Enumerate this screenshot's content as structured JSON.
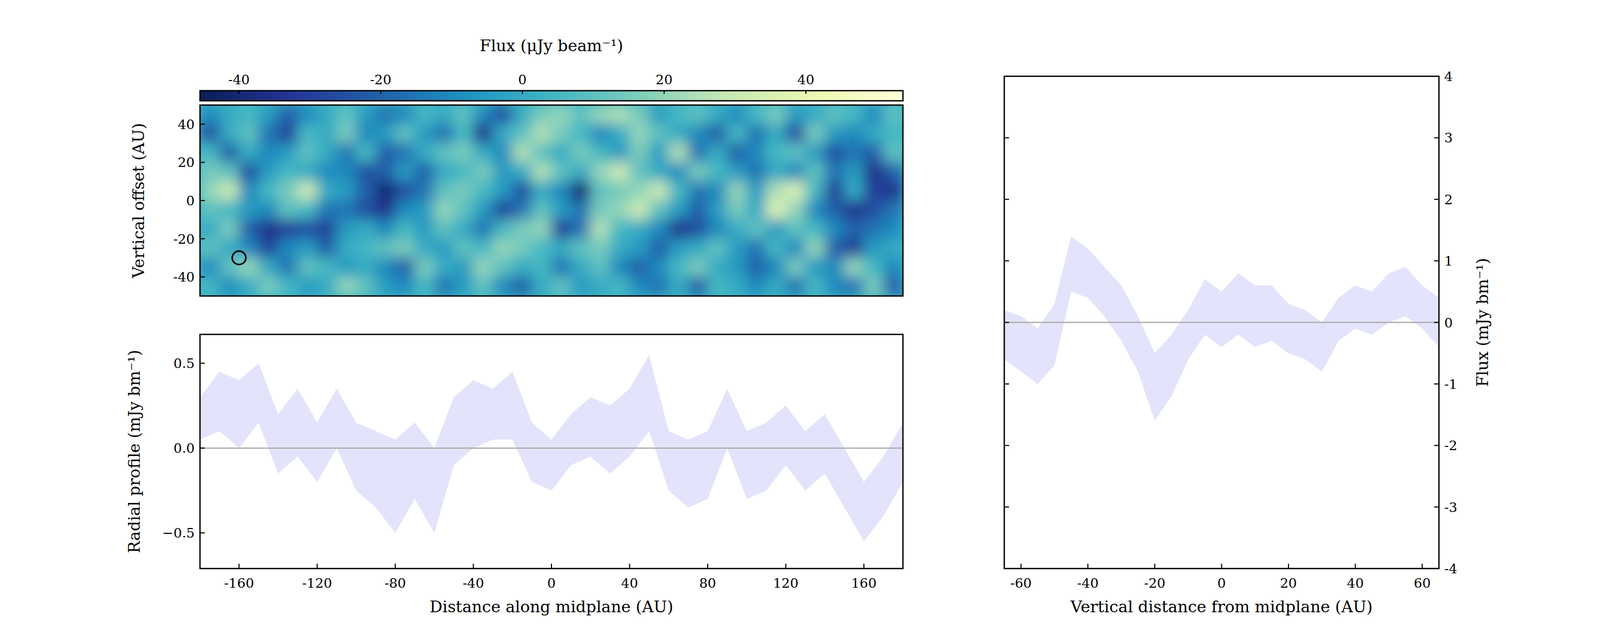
{
  "chart_data": [
    {
      "type": "heatmap",
      "y_label": "Vertical offset (AU)",
      "xlim": [
        -180,
        180
      ],
      "ylim": [
        -50,
        50
      ],
      "yticks": [
        -40,
        -20,
        0,
        20,
        40
      ],
      "tick_labels": "y",
      "x": [
        -175,
        -165,
        -155,
        -145,
        -135,
        -125,
        -115,
        -105,
        -95,
        -85,
        -75,
        -65,
        -55,
        -45,
        -35,
        -25,
        -15,
        -5,
        5,
        15,
        25,
        35,
        45,
        55,
        65,
        75,
        85,
        95,
        105,
        115,
        125,
        135,
        145,
        155,
        165,
        175
      ],
      "y": [
        45,
        35,
        25,
        15,
        5,
        -5,
        -15,
        -25,
        -35,
        -45
      ],
      "cells": [
        [
          -10,
          0,
          5,
          -5,
          -20,
          -10,
          0,
          10,
          -5,
          -15,
          -10,
          5,
          0,
          10,
          -10,
          -25,
          0,
          15,
          20,
          10,
          20,
          25,
          15,
          -5,
          5,
          10,
          0,
          -10,
          5,
          15,
          -5,
          0,
          10,
          5,
          -10,
          10
        ],
        [
          -25,
          0,
          10,
          -15,
          -30,
          5,
          0,
          15,
          -10,
          -5,
          10,
          -5,
          -15,
          5,
          -35,
          0,
          10,
          25,
          15,
          5,
          -10,
          0,
          20,
          10,
          0,
          -10,
          -20,
          5,
          -15,
          0,
          -25,
          15,
          -5,
          -10,
          0,
          5
        ],
        [
          5,
          -20,
          0,
          -10,
          -5,
          10,
          0,
          -15,
          5,
          -20,
          -15,
          0,
          10,
          15,
          0,
          -10,
          25,
          10,
          0,
          15,
          5,
          -5,
          15,
          -5,
          25,
          -15,
          0,
          -20,
          -10,
          5,
          10,
          -5,
          -25,
          -15,
          -20,
          10
        ],
        [
          15,
          10,
          -25,
          -5,
          5,
          0,
          -10,
          -10,
          -25,
          -20,
          -5,
          -20,
          0,
          5,
          15,
          -5,
          0,
          25,
          10,
          0,
          20,
          30,
          10,
          0,
          -10,
          15,
          5,
          -5,
          -15,
          0,
          -10,
          10,
          -15,
          -5,
          -35,
          -20
        ],
        [
          20,
          30,
          -10,
          5,
          15,
          30,
          0,
          -5,
          -20,
          -40,
          -25,
          -15,
          10,
          15,
          5,
          -5,
          -25,
          0,
          -10,
          -40,
          10,
          15,
          20,
          30,
          5,
          -15,
          -10,
          20,
          -5,
          25,
          35,
          5,
          -30,
          0,
          -30,
          -35
        ],
        [
          10,
          5,
          -5,
          -10,
          10,
          5,
          -15,
          -15,
          -25,
          -35,
          -10,
          -5,
          20,
          10,
          -5,
          -30,
          -15,
          10,
          -5,
          -15,
          15,
          20,
          30,
          10,
          -5,
          -20,
          -5,
          15,
          0,
          35,
          20,
          -10,
          -20,
          -35,
          -25,
          -15
        ],
        [
          0,
          15,
          -20,
          -35,
          -30,
          -25,
          -30,
          -5,
          0,
          -10,
          5,
          -5,
          10,
          0,
          -15,
          5,
          15,
          20,
          -30,
          -15,
          25,
          5,
          0,
          -10,
          -35,
          -25,
          -10,
          0,
          10,
          -5,
          10,
          5,
          -10,
          -20,
          -15,
          -10
        ],
        [
          10,
          0,
          -10,
          -30,
          -10,
          -5,
          -20,
          0,
          5,
          10,
          15,
          0,
          -5,
          10,
          5,
          20,
          15,
          5,
          0,
          10,
          15,
          0,
          -5,
          -20,
          -5,
          0,
          10,
          -5,
          -15,
          5,
          -10,
          20,
          -20,
          -30,
          -5,
          0
        ],
        [
          -10,
          10,
          20,
          0,
          -15,
          10,
          5,
          -5,
          0,
          -10,
          -20,
          15,
          0,
          -5,
          20,
          10,
          0,
          5,
          -15,
          0,
          10,
          -10,
          -20,
          -10,
          5,
          15,
          0,
          -5,
          -20,
          -10,
          15,
          -5,
          -10,
          20,
          5,
          -10
        ],
        [
          5,
          -10,
          0,
          15,
          5,
          -5,
          0,
          20,
          10,
          -5,
          -10,
          5,
          -15,
          -5,
          10,
          -10,
          -20,
          0,
          10,
          -5,
          0,
          5,
          -10,
          -15,
          0,
          -20,
          5,
          0,
          -10,
          0,
          -15,
          5,
          -10,
          -15,
          15,
          -20
        ]
      ],
      "colorbar": {
        "label": "Flux (μJy beam⁻¹)",
        "range": [
          -45.5,
          53.7
        ],
        "ticks": [
          -40,
          -20,
          0,
          20,
          40
        ]
      },
      "beam": {
        "x": -160,
        "y": -30,
        "diameter": 7
      }
    },
    {
      "type": "band",
      "x_label": "Distance along midplane (AU)",
      "y_label": "Radial profile (mJy bm⁻¹)",
      "xlim": [
        -180,
        180
      ],
      "ylim": [
        -0.71,
        0.67
      ],
      "xticks": [
        -160,
        -120,
        -80,
        -40,
        0,
        40,
        80,
        120,
        160
      ],
      "yticks": [
        {
          "value": -0.5,
          "label": "−0.5"
        },
        {
          "value": 0,
          "label": "0.0"
        },
        {
          "value": 0.5,
          "label": "0.5"
        }
      ],
      "color": "#e3e3fb",
      "hline": 0,
      "x": [
        -180,
        -170,
        -160,
        -150,
        -140,
        -130,
        -120,
        -110,
        -100,
        -90,
        -80,
        -70,
        -60,
        -50,
        -40,
        -30,
        -20,
        -10,
        0,
        10,
        20,
        30,
        40,
        50,
        60,
        70,
        80,
        90,
        100,
        110,
        120,
        130,
        140,
        150,
        160,
        170,
        180
      ],
      "high": [
        0.3,
        0.45,
        0.4,
        0.5,
        0.2,
        0.35,
        0.15,
        0.35,
        0.15,
        0.1,
        0.05,
        0.15,
        0.0,
        0.3,
        0.4,
        0.35,
        0.45,
        0.15,
        0.05,
        0.2,
        0.3,
        0.25,
        0.35,
        0.55,
        0.1,
        0.05,
        0.1,
        0.35,
        0.1,
        0.15,
        0.25,
        0.1,
        0.2,
        0.0,
        -0.2,
        -0.05,
        0.15
      ],
      "low": [
        0.05,
        0.1,
        0.0,
        0.15,
        -0.15,
        -0.05,
        -0.2,
        0.0,
        -0.25,
        -0.35,
        -0.5,
        -0.3,
        -0.5,
        -0.1,
        0.0,
        0.05,
        0.05,
        -0.2,
        -0.25,
        -0.1,
        -0.05,
        -0.15,
        -0.05,
        0.1,
        -0.25,
        -0.35,
        -0.3,
        0.0,
        -0.3,
        -0.25,
        -0.1,
        -0.25,
        -0.15,
        -0.35,
        -0.55,
        -0.4,
        -0.2
      ]
    },
    {
      "type": "band",
      "x_label": "Vertical distance from midplane (AU)",
      "y_label": "Flux (mJy bm⁻¹)",
      "xlim": [
        -65,
        65
      ],
      "ylim": [
        -4,
        4
      ],
      "xticks": [
        -60,
        -40,
        -20,
        0,
        20,
        40,
        60
      ],
      "yticks": [
        -4,
        -3,
        -2,
        -1,
        0,
        1,
        2,
        3,
        4
      ],
      "color": "#e3e3fb",
      "hline": 0,
      "x": [
        -65,
        -60,
        -55,
        -50,
        -45,
        -40,
        -35,
        -30,
        -25,
        -20,
        -15,
        -10,
        -5,
        0,
        5,
        10,
        15,
        20,
        25,
        30,
        35,
        40,
        45,
        50,
        55,
        60,
        65
      ],
      "high": [
        0.2,
        0.1,
        -0.1,
        0.3,
        1.4,
        1.2,
        0.9,
        0.6,
        0.1,
        -0.5,
        -0.2,
        0.2,
        0.7,
        0.5,
        0.8,
        0.6,
        0.6,
        0.3,
        0.2,
        0.0,
        0.4,
        0.6,
        0.5,
        0.8,
        0.9,
        0.6,
        0.4
      ],
      "low": [
        -0.6,
        -0.8,
        -1.0,
        -0.7,
        0.5,
        0.4,
        0.1,
        -0.3,
        -0.8,
        -1.6,
        -1.2,
        -0.6,
        -0.2,
        -0.4,
        -0.2,
        -0.4,
        -0.3,
        -0.5,
        -0.6,
        -0.8,
        -0.3,
        -0.1,
        -0.2,
        0.0,
        0.1,
        -0.1,
        -0.4
      ]
    }
  ]
}
